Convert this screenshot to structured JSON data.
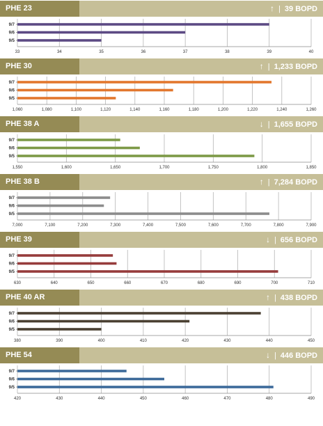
{
  "units": "BOPD",
  "chart_data": [
    {
      "type": "bar",
      "orientation": "horizontal",
      "well": "PHE 23",
      "trend": "up",
      "rate": "39",
      "categories": [
        "9/7",
        "9/6",
        "9/5"
      ],
      "values": [
        39,
        37,
        35
      ],
      "xlim": [
        33,
        40
      ],
      "ticks": [
        33,
        34,
        35,
        36,
        37,
        38,
        39,
        40
      ],
      "tick_labels": [
        "33",
        "34",
        "35",
        "36",
        "37",
        "38",
        "39",
        "40"
      ],
      "color": "#5c4a84"
    },
    {
      "type": "bar",
      "orientation": "horizontal",
      "well": "PHE 30",
      "trend": "up",
      "rate": "1,233",
      "categories": [
        "9/7",
        "9/6",
        "9/5"
      ],
      "values": [
        1233,
        1166,
        1127
      ],
      "xlim": [
        1060,
        1260
      ],
      "ticks": [
        1060,
        1080,
        1100,
        1120,
        1140,
        1160,
        1180,
        1200,
        1220,
        1240,
        1260
      ],
      "tick_labels": [
        "1,060",
        "1,080",
        "1,100",
        "1,120",
        "1,140",
        "1,160",
        "1,180",
        "1,200",
        "1,220",
        "1,240",
        "1,260"
      ],
      "color": "#e2772e"
    },
    {
      "type": "bar",
      "orientation": "horizontal",
      "well": "PHE 38 A",
      "trend": "down",
      "rate": "1,655",
      "categories": [
        "9/7",
        "9/6",
        "9/5"
      ],
      "values": [
        1655,
        1675,
        1792
      ],
      "xlim": [
        1550,
        1850
      ],
      "ticks": [
        1550,
        1600,
        1650,
        1700,
        1750,
        1800,
        1850
      ],
      "tick_labels": [
        "1,550",
        "1,600",
        "1,650",
        "1,700",
        "1,750",
        "1,800",
        "1,850"
      ],
      "color": "#7d9a47"
    },
    {
      "type": "bar",
      "orientation": "horizontal",
      "well": "PHE 38 B",
      "trend": "up",
      "rate": "7,284",
      "categories": [
        "9/7",
        "9/6",
        "9/5"
      ],
      "values": [
        7284,
        7265,
        7772
      ],
      "xlim": [
        7000,
        7900
      ],
      "ticks": [
        7000,
        7100,
        7200,
        7300,
        7400,
        7500,
        7600,
        7700,
        7800,
        7900
      ],
      "tick_labels": [
        "7,000",
        "7,100",
        "7,200",
        "7,300",
        "7,400",
        "7,500",
        "7,600",
        "7,700",
        "7,800",
        "7,900"
      ],
      "color": "#8c8c8c"
    },
    {
      "type": "bar",
      "orientation": "horizontal",
      "well": "PHE 39",
      "trend": "down",
      "rate": "656",
      "categories": [
        "9/7",
        "9/6",
        "9/5"
      ],
      "values": [
        656,
        657,
        701
      ],
      "xlim": [
        630,
        710
      ],
      "ticks": [
        630,
        640,
        650,
        660,
        670,
        680,
        690,
        700,
        710
      ],
      "tick_labels": [
        "630",
        "640",
        "650",
        "660",
        "670",
        "680",
        "690",
        "700",
        "710"
      ],
      "color": "#963c3c"
    },
    {
      "type": "bar",
      "orientation": "horizontal",
      "well": "PHE 40 AR",
      "trend": "up",
      "rate": "438",
      "categories": [
        "9/7",
        "9/6",
        "9/5"
      ],
      "values": [
        438,
        421,
        400
      ],
      "xlim": [
        380,
        450
      ],
      "ticks": [
        380,
        390,
        400,
        410,
        420,
        430,
        440,
        450
      ],
      "tick_labels": [
        "380",
        "390",
        "400",
        "410",
        "420",
        "430",
        "440",
        "450"
      ],
      "color": "#4a4032"
    },
    {
      "type": "bar",
      "orientation": "horizontal",
      "well": "PHE 54",
      "trend": "down",
      "rate": "446",
      "categories": [
        "9/7",
        "9/6",
        "9/5"
      ],
      "values": [
        446,
        455,
        481
      ],
      "xlim": [
        420,
        490
      ],
      "ticks": [
        420,
        430,
        440,
        450,
        460,
        470,
        480,
        490
      ],
      "tick_labels": [
        "420",
        "430",
        "440",
        "450",
        "460",
        "470",
        "480",
        "490"
      ],
      "color": "#3d6a9a"
    }
  ]
}
